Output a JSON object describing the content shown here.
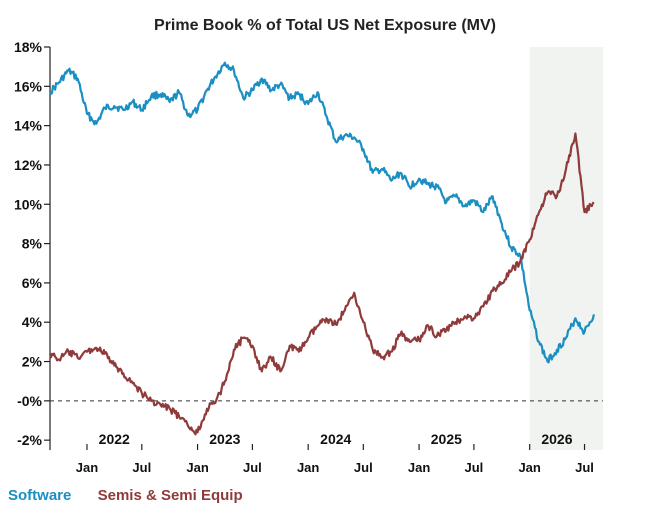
{
  "chart_data": {
    "type": "line",
    "title": "Prime Book % of Total US Net Exposure (MV)",
    "ylim": [
      -2.5,
      18
    ],
    "y_ticks": [
      {
        "value": 18,
        "label": "18%"
      },
      {
        "value": 16,
        "label": "16%"
      },
      {
        "value": 14,
        "label": "14%"
      },
      {
        "value": 12,
        "label": "12%"
      },
      {
        "value": 10,
        "label": "10%"
      },
      {
        "value": 8,
        "label": "8%"
      },
      {
        "value": 6,
        "label": "6%"
      },
      {
        "value": 4,
        "label": "4%"
      },
      {
        "value": 2,
        "label": "2%"
      },
      {
        "value": 0,
        "label": "-0%"
      },
      {
        "value": -2,
        "label": "-2%"
      }
    ],
    "x_range": [
      "2021-09-01",
      "2026-08-31"
    ],
    "x_ticks": [
      {
        "date": "2022-01-01",
        "label": "Jan"
      },
      {
        "date": "2022-07-01",
        "label": "Jul"
      },
      {
        "date": "2023-01-01",
        "label": "Jan"
      },
      {
        "date": "2023-07-01",
        "label": "Jul"
      },
      {
        "date": "2024-01-01",
        "label": "Jan"
      },
      {
        "date": "2024-07-01",
        "label": "Jul"
      },
      {
        "date": "2025-01-01",
        "label": "Jan"
      },
      {
        "date": "2025-07-01",
        "label": "Jul"
      },
      {
        "date": "2026-01-01",
        "label": "Jan"
      },
      {
        "date": "2026-07-01",
        "label": "Jul"
      }
    ],
    "year_labels": [
      {
        "date": "2022-04-01",
        "label": "2022"
      },
      {
        "date": "2023-04-01",
        "label": "2023"
      },
      {
        "date": "2024-04-01",
        "label": "2024"
      },
      {
        "date": "2025-04-01",
        "label": "2025"
      },
      {
        "date": "2026-04-01",
        "label": "2026"
      }
    ],
    "shaded_region": {
      "start": "2026-01-01",
      "end": "2026-08-31",
      "color": "#f1f3f1"
    },
    "zero_line": {
      "value": 0,
      "style": "dashed"
    },
    "legend_placement": "bottom-left",
    "series": [
      {
        "name": "Software",
        "color": "#1b8ec2",
        "points": [
          [
            "2021-09-01",
            15.7
          ],
          [
            "2021-10-01",
            16.2
          ],
          [
            "2021-11-01",
            16.8
          ],
          [
            "2021-12-01",
            16.4
          ],
          [
            "2022-01-01",
            14.6
          ],
          [
            "2022-02-01",
            14.1
          ],
          [
            "2022-03-01",
            14.9
          ],
          [
            "2022-04-01",
            15.0
          ],
          [
            "2022-05-01",
            14.8
          ],
          [
            "2022-06-01",
            15.2
          ],
          [
            "2022-07-01",
            14.8
          ],
          [
            "2022-08-01",
            15.5
          ],
          [
            "2022-09-01",
            15.6
          ],
          [
            "2022-10-01",
            15.2
          ],
          [
            "2022-11-01",
            15.7
          ],
          [
            "2022-12-01",
            14.5
          ],
          [
            "2023-01-01",
            14.8
          ],
          [
            "2023-02-01",
            15.8
          ],
          [
            "2023-03-01",
            16.5
          ],
          [
            "2023-04-01",
            17.2
          ],
          [
            "2023-05-01",
            16.8
          ],
          [
            "2023-06-01",
            15.4
          ],
          [
            "2023-07-01",
            15.8
          ],
          [
            "2023-08-01",
            16.4
          ],
          [
            "2023-09-01",
            15.8
          ],
          [
            "2023-10-01",
            16.1
          ],
          [
            "2023-11-01",
            15.4
          ],
          [
            "2023-12-01",
            15.6
          ],
          [
            "2024-01-01",
            15.1
          ],
          [
            "2024-02-01",
            15.7
          ],
          [
            "2024-03-01",
            14.5
          ],
          [
            "2024-04-01",
            13.2
          ],
          [
            "2024-05-01",
            13.5
          ],
          [
            "2024-06-01",
            13.4
          ],
          [
            "2024-07-01",
            12.8
          ],
          [
            "2024-08-01",
            11.6
          ],
          [
            "2024-09-01",
            11.8
          ],
          [
            "2024-10-01",
            11.2
          ],
          [
            "2024-11-01",
            11.6
          ],
          [
            "2024-12-01",
            10.9
          ],
          [
            "2025-01-01",
            11.3
          ],
          [
            "2025-02-01",
            11.0
          ],
          [
            "2025-03-01",
            10.9
          ],
          [
            "2025-04-01",
            10.1
          ],
          [
            "2025-05-01",
            10.4
          ],
          [
            "2025-06-01",
            9.9
          ],
          [
            "2025-07-01",
            10.2
          ],
          [
            "2025-08-01",
            9.6
          ],
          [
            "2025-09-01",
            10.4
          ],
          [
            "2025-10-01",
            9.0
          ],
          [
            "2025-11-01",
            7.8
          ],
          [
            "2025-12-01",
            7.4
          ],
          [
            "2026-01-01",
            4.6
          ],
          [
            "2026-02-01",
            3.0
          ],
          [
            "2026-03-01",
            2.0
          ],
          [
            "2026-04-01",
            2.6
          ],
          [
            "2026-05-01",
            3.2
          ],
          [
            "2026-06-01",
            4.2
          ],
          [
            "2026-07-01",
            3.5
          ],
          [
            "2026-08-01",
            4.4
          ]
        ]
      },
      {
        "name": "Semis & Semi Equip",
        "color": "#8f3b3b",
        "points": [
          [
            "2021-09-01",
            2.4
          ],
          [
            "2021-10-01",
            2.1
          ],
          [
            "2021-11-01",
            2.5
          ],
          [
            "2021-12-01",
            2.2
          ],
          [
            "2022-01-01",
            2.5
          ],
          [
            "2022-02-01",
            2.7
          ],
          [
            "2022-03-01",
            2.4
          ],
          [
            "2022-04-01",
            1.8
          ],
          [
            "2022-05-01",
            1.4
          ],
          [
            "2022-06-01",
            0.9
          ],
          [
            "2022-07-01",
            0.4
          ],
          [
            "2022-08-01",
            0.0
          ],
          [
            "2022-09-01",
            -0.2
          ],
          [
            "2022-10-01",
            -0.4
          ],
          [
            "2022-11-01",
            -0.8
          ],
          [
            "2022-12-01",
            -1.3
          ],
          [
            "2023-01-01",
            -1.6
          ],
          [
            "2023-02-01",
            -0.4
          ],
          [
            "2023-03-01",
            -0.1
          ],
          [
            "2023-04-01",
            1.0
          ],
          [
            "2023-05-01",
            2.6
          ],
          [
            "2023-06-01",
            3.2
          ],
          [
            "2023-07-01",
            2.8
          ],
          [
            "2023-08-01",
            1.5
          ],
          [
            "2023-09-01",
            2.2
          ],
          [
            "2023-10-01",
            1.5
          ],
          [
            "2023-11-01",
            2.8
          ],
          [
            "2023-12-01",
            2.5
          ],
          [
            "2024-01-01",
            3.2
          ],
          [
            "2024-02-01",
            3.8
          ],
          [
            "2024-03-01",
            4.2
          ],
          [
            "2024-04-01",
            3.9
          ],
          [
            "2024-05-01",
            4.6
          ],
          [
            "2024-06-01",
            5.5
          ],
          [
            "2024-07-01",
            4.0
          ],
          [
            "2024-08-01",
            2.6
          ],
          [
            "2024-09-01",
            2.2
          ],
          [
            "2024-10-01",
            2.5
          ],
          [
            "2024-11-01",
            3.4
          ],
          [
            "2024-12-01",
            3.0
          ],
          [
            "2025-01-01",
            3.1
          ],
          [
            "2025-02-01",
            3.8
          ],
          [
            "2025-03-01",
            3.3
          ],
          [
            "2025-04-01",
            3.6
          ],
          [
            "2025-05-01",
            4.0
          ],
          [
            "2025-06-01",
            4.3
          ],
          [
            "2025-07-01",
            4.2
          ],
          [
            "2025-08-01",
            4.8
          ],
          [
            "2025-09-01",
            5.6
          ],
          [
            "2025-10-01",
            6.0
          ],
          [
            "2025-11-01",
            6.6
          ],
          [
            "2025-12-01",
            7.1
          ],
          [
            "2026-01-01",
            8.2
          ],
          [
            "2026-02-01",
            9.6
          ],
          [
            "2026-03-01",
            10.6
          ],
          [
            "2026-04-01",
            10.4
          ],
          [
            "2026-05-01",
            11.8
          ],
          [
            "2026-06-01",
            13.6
          ],
          [
            "2026-07-01",
            9.6
          ],
          [
            "2026-08-01",
            10.1
          ]
        ]
      }
    ]
  }
}
